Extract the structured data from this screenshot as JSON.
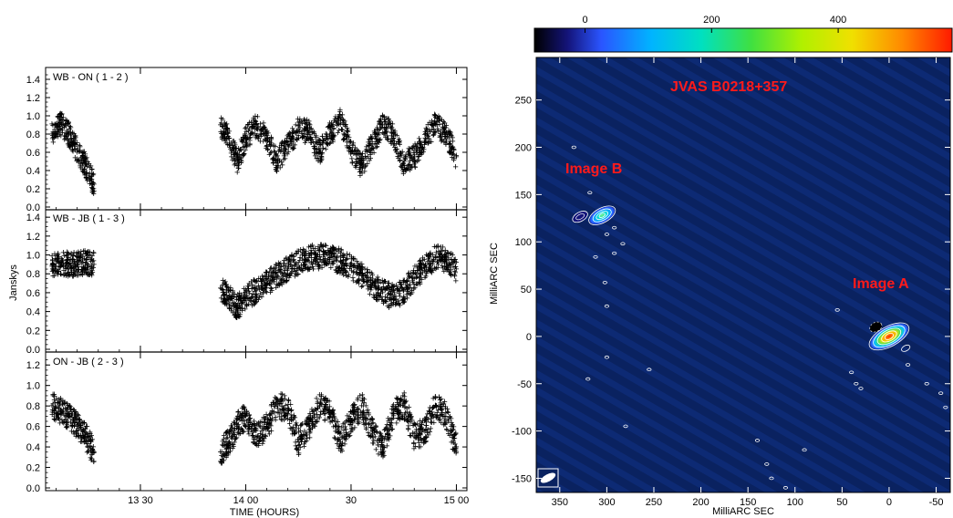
{
  "chart_data": [
    {
      "type": "scatter",
      "subtype": "stacked light curves",
      "xlabel": "TIME (HOURS)",
      "ylabel": "Janskys",
      "x_tick_labels": [
        {
          "value": 13.5,
          "label": "13 30"
        },
        {
          "value": 14.0,
          "label": "14 00"
        },
        {
          "value": 14.5,
          "label": "30"
        },
        {
          "value": 15.0,
          "label": "15 00"
        }
      ],
      "xlim": [
        13.05,
        15.05
      ],
      "grid": false,
      "panels": [
        {
          "title": "WB - ON ( 1 - 2 )",
          "ylim": [
            0.0,
            1.5
          ],
          "yticks": [
            0.0,
            0.2,
            0.4,
            0.6,
            0.8,
            1.0,
            1.2,
            1.4
          ],
          "series": [
            {
              "x": [
                13.08,
                13.12,
                13.16,
                13.2,
                13.24,
                13.28,
                13.88,
                13.92,
                13.96,
                14.0,
                14.05,
                14.1,
                14.15,
                14.2,
                14.25,
                14.3,
                14.35,
                14.4,
                14.45,
                14.5,
                14.55,
                14.6,
                14.65,
                14.7,
                14.75,
                14.8,
                14.85,
                14.9,
                14.95,
                15.0
              ],
              "y": [
                0.8,
                0.92,
                0.8,
                0.62,
                0.45,
                0.25,
                0.9,
                0.75,
                0.5,
                0.75,
                0.9,
                0.75,
                0.5,
                0.68,
                0.85,
                0.82,
                0.6,
                0.8,
                0.95,
                0.62,
                0.45,
                0.68,
                0.9,
                0.8,
                0.48,
                0.55,
                0.72,
                0.9,
                0.8,
                0.55
              ]
            }
          ]
        },
        {
          "title": "WB - JB ( 1 - 3 )",
          "ylim": [
            0.0,
            1.45
          ],
          "yticks": [
            0.0,
            0.2,
            0.4,
            0.6,
            0.8,
            1.0,
            1.2,
            1.4
          ],
          "series": [
            {
              "x": [
                13.08,
                13.12,
                13.16,
                13.2,
                13.24,
                13.28,
                13.88,
                13.92,
                13.96,
                14.0,
                14.05,
                14.1,
                14.15,
                14.2,
                14.25,
                14.3,
                14.35,
                14.4,
                14.45,
                14.5,
                14.55,
                14.6,
                14.65,
                14.7,
                14.75,
                14.8,
                14.85,
                14.9,
                14.95,
                15.0
              ],
              "y": [
                0.88,
                0.92,
                0.9,
                0.9,
                0.92,
                0.9,
                0.65,
                0.55,
                0.45,
                0.55,
                0.62,
                0.7,
                0.78,
                0.85,
                0.92,
                0.97,
                0.98,
                0.97,
                0.93,
                0.87,
                0.78,
                0.68,
                0.6,
                0.55,
                0.62,
                0.75,
                0.88,
                0.97,
                0.95,
                0.85
              ]
            }
          ]
        },
        {
          "title": "ON - JB ( 2 - 3 )",
          "ylim": [
            0.0,
            1.3
          ],
          "yticks": [
            0.0,
            0.2,
            0.4,
            0.6,
            0.8,
            1.0,
            1.2
          ],
          "series": [
            {
              "x": [
                13.08,
                13.12,
                13.16,
                13.2,
                13.24,
                13.28,
                13.88,
                13.92,
                13.96,
                14.0,
                14.05,
                14.1,
                14.15,
                14.2,
                14.25,
                14.3,
                14.35,
                14.4,
                14.45,
                14.5,
                14.55,
                14.6,
                14.65,
                14.7,
                14.75,
                14.8,
                14.85,
                14.9,
                14.95,
                15.0
              ],
              "y": [
                0.8,
                0.75,
                0.7,
                0.6,
                0.5,
                0.35,
                0.35,
                0.45,
                0.6,
                0.7,
                0.5,
                0.6,
                0.8,
                0.78,
                0.45,
                0.6,
                0.8,
                0.75,
                0.45,
                0.65,
                0.8,
                0.55,
                0.4,
                0.72,
                0.82,
                0.5,
                0.55,
                0.8,
                0.7,
                0.4
              ]
            }
          ]
        }
      ]
    },
    {
      "type": "heatmap",
      "subtype": "radio map with contours",
      "title": "JVAS B0218+357",
      "xlabel": "MilliARC SEC",
      "ylabel": "MilliARC SEC",
      "xlim": [
        375,
        -65
      ],
      "ylim": [
        -165,
        295
      ],
      "xticks": [
        350,
        300,
        250,
        200,
        150,
        100,
        50,
        0,
        -50
      ],
      "yticks": [
        250,
        200,
        150,
        100,
        50,
        0,
        -50,
        -100,
        -150
      ],
      "colorbar": {
        "ticks": [
          0,
          200,
          400
        ],
        "range": [
          -80,
          580
        ],
        "colors": [
          "#000000",
          "#1a1aa8",
          "#2a4fff",
          "#00b4ff",
          "#00e6c8",
          "#40e040",
          "#a8f000",
          "#f0e000",
          "#ff8000",
          "#ff2000"
        ]
      },
      "background_color": "#0a2260",
      "annotations": [
        {
          "text": "Image A",
          "x": 20,
          "y": 50
        },
        {
          "text": "Image B",
          "x": 330,
          "y": 170
        }
      ],
      "sources": [
        {
          "name": "Image A",
          "x": 0,
          "y": 0,
          "peak": 560
        },
        {
          "name": "Image B",
          "x": 305,
          "y": 128,
          "peak": 250
        }
      ]
    }
  ]
}
